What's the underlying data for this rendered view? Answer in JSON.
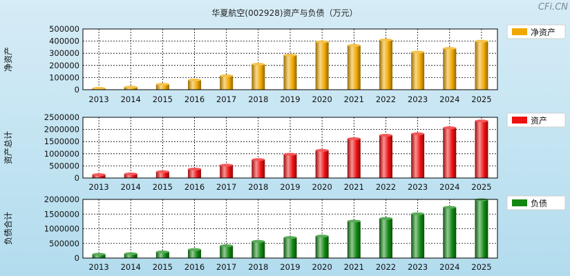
{
  "title": "华夏航空(002928)资产与负债（万元）",
  "watermark": "CFi.CN",
  "chart_data": [
    {
      "type": "bar",
      "ylabel": "净资产",
      "legend": "净资产",
      "legend_position": "right",
      "color": "#F0A800",
      "categories": [
        "2013",
        "2014",
        "2015",
        "2016",
        "2017",
        "2018",
        "2019",
        "2020",
        "2021",
        "2022",
        "2023",
        "2024",
        "2025"
      ],
      "values": [
        12000,
        22000,
        45000,
        80000,
        115000,
        210000,
        285000,
        395000,
        365000,
        410000,
        310000,
        340000,
        400000
      ],
      "ylim": [
        0,
        500000
      ],
      "yticks": [
        "0",
        "100000",
        "200000",
        "300000",
        "400000",
        "500000"
      ],
      "grid": true
    },
    {
      "type": "bar",
      "ylabel": "资产总计",
      "legend": "资产",
      "legend_position": "right",
      "color": "#EE1111",
      "categories": [
        "2013",
        "2014",
        "2015",
        "2016",
        "2017",
        "2018",
        "2019",
        "2020",
        "2021",
        "2022",
        "2023",
        "2024",
        "2025"
      ],
      "values": [
        140000,
        170000,
        260000,
        370000,
        530000,
        760000,
        980000,
        1140000,
        1620000,
        1760000,
        1820000,
        2070000,
        2350000
      ],
      "ylim": [
        0,
        2500000
      ],
      "yticks": [
        "0",
        "500000",
        "1000000",
        "1500000",
        "2000000",
        "2500000"
      ],
      "grid": true
    },
    {
      "type": "bar",
      "ylabel": "负债合计",
      "legend": "负债",
      "legend_position": "right",
      "color": "#118811",
      "categories": [
        "2013",
        "2014",
        "2015",
        "2016",
        "2017",
        "2018",
        "2019",
        "2020",
        "2021",
        "2022",
        "2023",
        "2024",
        "2025"
      ],
      "values": [
        130000,
        150000,
        210000,
        290000,
        420000,
        570000,
        700000,
        750000,
        1260000,
        1350000,
        1510000,
        1730000,
        1990000
      ],
      "ylim": [
        0,
        2000000
      ],
      "yticks": [
        "0",
        "500000",
        "1000000",
        "1500000",
        "2000000"
      ],
      "grid": true
    }
  ]
}
